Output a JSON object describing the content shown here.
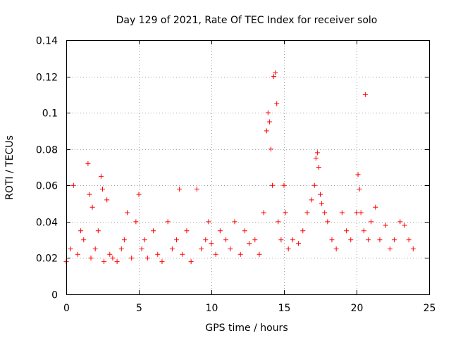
{
  "chart_data": {
    "type": "scatter",
    "title": "Day 129 of 2021, Rate Of TEC Index for receiver solo",
    "xlabel": "GPS time / hours",
    "ylabel": "ROTI / TECUs",
    "xlim": [
      0,
      25
    ],
    "ylim": [
      0,
      0.14
    ],
    "x_ticks": [
      0,
      5,
      10,
      15,
      20,
      25
    ],
    "x_tick_labels": [
      "0",
      "5",
      "10",
      "15",
      "20",
      "25"
    ],
    "y_ticks": [
      0,
      0.02,
      0.04,
      0.06,
      0.08,
      0.1,
      0.12,
      0.14
    ],
    "y_tick_labels": [
      "0",
      "0.02",
      "0.04",
      "0.06",
      "0.08",
      "0.1",
      "0.12",
      "0.14"
    ],
    "grid": true,
    "marker": "+",
    "marker_color": "#ff0000",
    "series": [
      {
        "name": "ROTI",
        "x": [
          0.0,
          0.3,
          0.5,
          0.8,
          1.0,
          1.2,
          1.5,
          1.6,
          1.7,
          1.8,
          2.0,
          2.2,
          2.4,
          2.5,
          2.6,
          2.8,
          3.0,
          3.2,
          3.5,
          3.8,
          4.0,
          4.2,
          4.5,
          4.8,
          5.0,
          5.2,
          5.4,
          5.6,
          6.0,
          6.3,
          6.6,
          7.0,
          7.3,
          7.6,
          7.8,
          8.0,
          8.3,
          8.6,
          9.0,
          9.3,
          9.6,
          9.8,
          10.0,
          10.3,
          10.6,
          11.0,
          11.3,
          11.6,
          12.0,
          12.3,
          12.6,
          13.0,
          13.3,
          13.6,
          13.8,
          13.9,
          14.0,
          14.1,
          14.2,
          14.3,
          14.4,
          14.5,
          14.6,
          14.8,
          15.0,
          15.1,
          15.3,
          15.6,
          16.0,
          16.3,
          16.6,
          16.9,
          17.1,
          17.2,
          17.3,
          17.4,
          17.5,
          17.6,
          17.8,
          18.0,
          18.3,
          18.6,
          19.0,
          19.3,
          19.6,
          20.0,
          20.1,
          20.2,
          20.3,
          20.5,
          20.6,
          20.8,
          21.0,
          21.3,
          21.6,
          22.0,
          22.3,
          22.6,
          23.0,
          23.3,
          23.6,
          23.9
        ],
        "y": [
          0.018,
          0.025,
          0.06,
          0.022,
          0.035,
          0.03,
          0.072,
          0.055,
          0.02,
          0.048,
          0.025,
          0.035,
          0.065,
          0.058,
          0.018,
          0.052,
          0.022,
          0.02,
          0.018,
          0.025,
          0.03,
          0.045,
          0.02,
          0.04,
          0.055,
          0.025,
          0.03,
          0.02,
          0.035,
          0.022,
          0.018,
          0.04,
          0.025,
          0.03,
          0.058,
          0.022,
          0.035,
          0.018,
          0.058,
          0.025,
          0.03,
          0.04,
          0.028,
          0.022,
          0.035,
          0.03,
          0.025,
          0.04,
          0.022,
          0.035,
          0.028,
          0.03,
          0.022,
          0.045,
          0.09,
          0.1,
          0.095,
          0.08,
          0.06,
          0.12,
          0.122,
          0.105,
          0.04,
          0.03,
          0.06,
          0.045,
          0.025,
          0.03,
          0.028,
          0.035,
          0.045,
          0.052,
          0.06,
          0.075,
          0.078,
          0.07,
          0.055,
          0.05,
          0.045,
          0.04,
          0.03,
          0.025,
          0.045,
          0.035,
          0.03,
          0.045,
          0.066,
          0.058,
          0.045,
          0.035,
          0.11,
          0.03,
          0.04,
          0.048,
          0.03,
          0.038,
          0.025,
          0.03,
          0.04,
          0.038,
          0.03,
          0.025
        ]
      }
    ]
  }
}
